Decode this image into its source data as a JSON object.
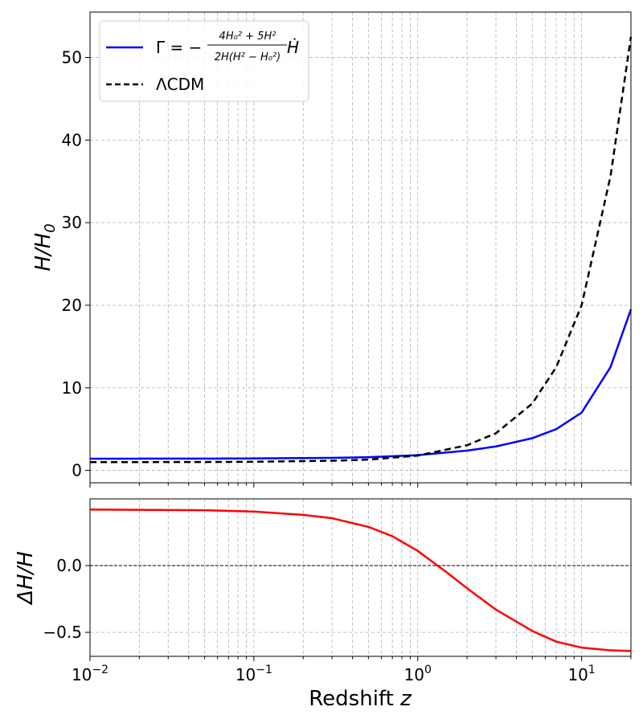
{
  "chart_data": [
    {
      "type": "line",
      "panel": "top",
      "ylabel": "H/H₀",
      "ylabel_parts": {
        "main": "H/H",
        "sub": "0"
      },
      "xscale": "log",
      "xlim": [
        0.01,
        20
      ],
      "ylim": [
        -1.5,
        55.5
      ],
      "yticks": [
        0,
        10,
        20,
        30,
        40,
        50
      ],
      "ytick_labels": [
        "0",
        "10",
        "20",
        "30",
        "40",
        "50"
      ],
      "grid": "on (dashed, major and minor x)",
      "legend_placement": "top-left",
      "legend": {
        "entry1": {
          "gamma_prefix": "Γ = −",
          "numerator": "4H₀² + 5H²",
          "denominator": "2H(H² − H₀²)",
          "suffix": "Ḣ"
        },
        "entry2": "ΛCDM"
      },
      "series": [
        {
          "name": "Γ = −(4H₀² + 5H²)/(2H(H² − H₀²)) Ḣ",
          "color": "#0000ff",
          "style": "solid",
          "x": [
            0.01,
            0.05,
            0.1,
            0.3,
            0.5,
            1,
            2,
            3,
            5,
            7,
            10,
            15,
            20
          ],
          "y": [
            1.42,
            1.43,
            1.45,
            1.52,
            1.6,
            1.85,
            2.4,
            2.9,
            3.9,
            5.0,
            7.0,
            12.5,
            19.5
          ]
        },
        {
          "name": "ΛCDM",
          "color": "#000000",
          "style": "dashed",
          "x": [
            0.01,
            0.05,
            0.1,
            0.3,
            0.5,
            1,
            2,
            3,
            5,
            7,
            10,
            15,
            20
          ],
          "y": [
            1.0,
            1.02,
            1.05,
            1.17,
            1.31,
            1.79,
            3.05,
            4.5,
            8.1,
            12.5,
            20.0,
            35.6,
            52.5
          ]
        }
      ]
    },
    {
      "type": "line",
      "panel": "bottom",
      "ylabel": "ΔH/H",
      "xlabel": "Redshift z",
      "xlabel_parts": {
        "main": "Redshift ",
        "var": "z"
      },
      "xscale": "log",
      "xlim": [
        0.01,
        20
      ],
      "ylim": [
        -0.68,
        0.5
      ],
      "yticks": [
        0.0,
        -0.5
      ],
      "ytick_labels": [
        "0.0",
        "−0.5"
      ],
      "xticks": [
        0.01,
        0.1,
        1,
        10
      ],
      "xtick_labels": [
        {
          "base": "10",
          "exp": "−2"
        },
        {
          "base": "10",
          "exp": "−1"
        },
        {
          "base": "10",
          "exp": "0"
        },
        {
          "base": "10",
          "exp": "1"
        }
      ],
      "reference_line": {
        "y": 0,
        "style": "dashed",
        "color": "#000000"
      },
      "series": [
        {
          "color": "#ff0000",
          "style": "solid",
          "x": [
            0.01,
            0.05,
            0.1,
            0.2,
            0.3,
            0.5,
            0.7,
            1,
            1.5,
            2,
            3,
            5,
            7,
            10,
            15,
            20
          ],
          "y": [
            0.42,
            0.415,
            0.405,
            0.38,
            0.355,
            0.29,
            0.22,
            0.11,
            -0.05,
            -0.17,
            -0.33,
            -0.49,
            -0.57,
            -0.615,
            -0.635,
            -0.64
          ]
        }
      ]
    }
  ]
}
